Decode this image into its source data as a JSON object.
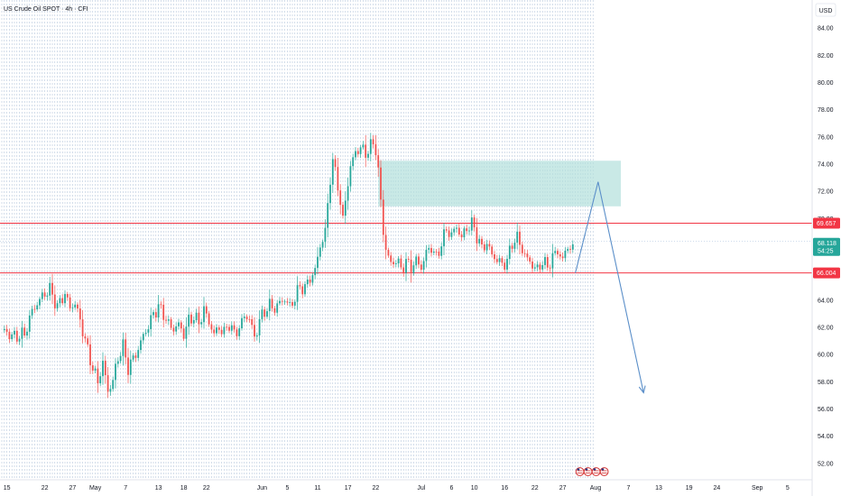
{
  "title": "US Crude Oil SPOT · 4h · CFI",
  "currency": "USD",
  "colors": {
    "up": "#26a69a",
    "down": "#ef5350",
    "zone": "#b2dfdb",
    "level": "#f23645",
    "forecast": "#5b8fc9",
    "grid": "#9db4d0"
  },
  "chart_data": {
    "type": "candlestick",
    "title": "US Crude Oil SPOT · 4h · CFI",
    "ylim": [
      50.8,
      85.8
    ],
    "y_ticks": [
      52,
      54,
      56,
      58,
      60,
      62,
      64,
      66,
      68,
      70,
      72,
      74,
      76,
      78,
      80,
      82,
      84
    ],
    "x_ticks": [
      {
        "label": "15",
        "i": 2
      },
      {
        "label": "22",
        "i": 17
      },
      {
        "label": "27",
        "i": 28
      },
      {
        "label": "May",
        "i": 37
      },
      {
        "label": "7",
        "i": 49
      },
      {
        "label": "13",
        "i": 62
      },
      {
        "label": "18",
        "i": 72
      },
      {
        "label": "22",
        "i": 81
      },
      {
        "label": "Jun",
        "i": 103
      },
      {
        "label": "5",
        "i": 113
      },
      {
        "label": "11",
        "i": 125
      },
      {
        "label": "17",
        "i": 137
      },
      {
        "label": "22",
        "i": 148
      },
      {
        "label": "Jul",
        "i": 166
      },
      {
        "label": "6",
        "i": 178
      },
      {
        "label": "10",
        "i": 187
      },
      {
        "label": "16",
        "i": 199
      },
      {
        "label": "22",
        "i": 211
      },
      {
        "label": "27",
        "i": 222
      },
      {
        "label": "Aug",
        "i": 235
      },
      {
        "label": "7",
        "i": 248
      },
      {
        "label": "13",
        "i": 260
      },
      {
        "label": "19",
        "i": 272
      },
      {
        "label": "24",
        "i": 283
      },
      {
        "label": "Sep",
        "i": 299
      },
      {
        "label": "5",
        "i": 311
      }
    ],
    "n_slots": 320,
    "key_points": [
      [
        0,
        61.8
      ],
      [
        5,
        61.3
      ],
      [
        9,
        61.5
      ],
      [
        12,
        63.2
      ],
      [
        16,
        64.3
      ],
      [
        19,
        64.8
      ],
      [
        22,
        63.5
      ],
      [
        25,
        64.5
      ],
      [
        27,
        63.4
      ],
      [
        29,
        63.8
      ],
      [
        32,
        61.8
      ],
      [
        34,
        60.3
      ],
      [
        36,
        59.0
      ],
      [
        38,
        58.0
      ],
      [
        40,
        59.4
      ],
      [
        42,
        57.3
      ],
      [
        44,
        58.1
      ],
      [
        46,
        59.8
      ],
      [
        48,
        60.6
      ],
      [
        50,
        59.0
      ],
      [
        52,
        59.7
      ],
      [
        54,
        60.4
      ],
      [
        56,
        61.4
      ],
      [
        58,
        62.1
      ],
      [
        60,
        63.0
      ],
      [
        62,
        63.5
      ],
      [
        64,
        63.0
      ],
      [
        66,
        62.2
      ],
      [
        68,
        61.9
      ],
      [
        70,
        62.2
      ],
      [
        72,
        61.5
      ],
      [
        74,
        62.5
      ],
      [
        76,
        62.8
      ],
      [
        78,
        62.3
      ],
      [
        80,
        63.3
      ],
      [
        82,
        62.4
      ],
      [
        84,
        61.5
      ],
      [
        86,
        62.0
      ],
      [
        88,
        61.6
      ],
      [
        90,
        62.3
      ],
      [
        92,
        61.5
      ],
      [
        94,
        62.0
      ],
      [
        96,
        62.8
      ],
      [
        98,
        62.7
      ],
      [
        100,
        61.2
      ],
      [
        102,
        62.5
      ],
      [
        104,
        63.2
      ],
      [
        106,
        63.6
      ],
      [
        108,
        63.4
      ],
      [
        110,
        63.8
      ],
      [
        112,
        64.1
      ],
      [
        114,
        63.5
      ],
      [
        116,
        64.2
      ],
      [
        118,
        65.0
      ],
      [
        120,
        64.9
      ],
      [
        122,
        65.6
      ],
      [
        124,
        66.2
      ],
      [
        126,
        68.0
      ],
      [
        128,
        69.0
      ],
      [
        130,
        73.0
      ],
      [
        131,
        74.2
      ],
      [
        133,
        72.5
      ],
      [
        135,
        69.8
      ],
      [
        136,
        71.4
      ],
      [
        138,
        73.8
      ],
      [
        140,
        74.9
      ],
      [
        142,
        75.2
      ],
      [
        144,
        74.8
      ],
      [
        146,
        75.3
      ],
      [
        147,
        75.5
      ],
      [
        148,
        75.1
      ],
      [
        149,
        73.5
      ],
      [
        150,
        71.2
      ],
      [
        151,
        69.0
      ],
      [
        152,
        67.8
      ],
      [
        154,
        66.6
      ],
      [
        156,
        67.0
      ],
      [
        158,
        66.3
      ],
      [
        160,
        66.8
      ],
      [
        162,
        66.4
      ],
      [
        164,
        66.9
      ],
      [
        166,
        66.4
      ],
      [
        168,
        67.5
      ],
      [
        170,
        67.9
      ],
      [
        172,
        67.1
      ],
      [
        174,
        68.2
      ],
      [
        176,
        69.2
      ],
      [
        178,
        68.8
      ],
      [
        180,
        69.4
      ],
      [
        182,
        68.6
      ],
      [
        184,
        69.3
      ],
      [
        186,
        69.6
      ],
      [
        187,
        69.3
      ],
      [
        188,
        68.7
      ],
      [
        190,
        67.8
      ],
      [
        192,
        68.2
      ],
      [
        194,
        67.3
      ],
      [
        196,
        67.0
      ],
      [
        198,
        66.6
      ],
      [
        200,
        66.9
      ],
      [
        202,
        68.2
      ],
      [
        204,
        68.6
      ],
      [
        206,
        67.7
      ],
      [
        208,
        67.0
      ],
      [
        210,
        66.6
      ],
      [
        212,
        66.2
      ],
      [
        214,
        66.9
      ],
      [
        216,
        66.4
      ],
      [
        218,
        67.2
      ],
      [
        220,
        67.6
      ],
      [
        222,
        67.0
      ],
      [
        224,
        67.9
      ],
      [
        226,
        68.1
      ]
    ],
    "horizontal_levels": [
      {
        "price": 69.657,
        "label": "69.657"
      },
      {
        "price": 66.004,
        "label": "66.004"
      }
    ],
    "last_price": {
      "price": 68.118,
      "label": "68.118",
      "countdown": "54:25"
    },
    "light_line_price": 68.35,
    "zone": {
      "i0": 149,
      "i1": 245,
      "y_top": 74.25,
      "y_bottom": 70.9
    },
    "forecast_path": [
      [
        227,
        66.0
      ],
      [
        236,
        72.7
      ],
      [
        254,
        57.2
      ]
    ],
    "events_at_i": 227
  }
}
